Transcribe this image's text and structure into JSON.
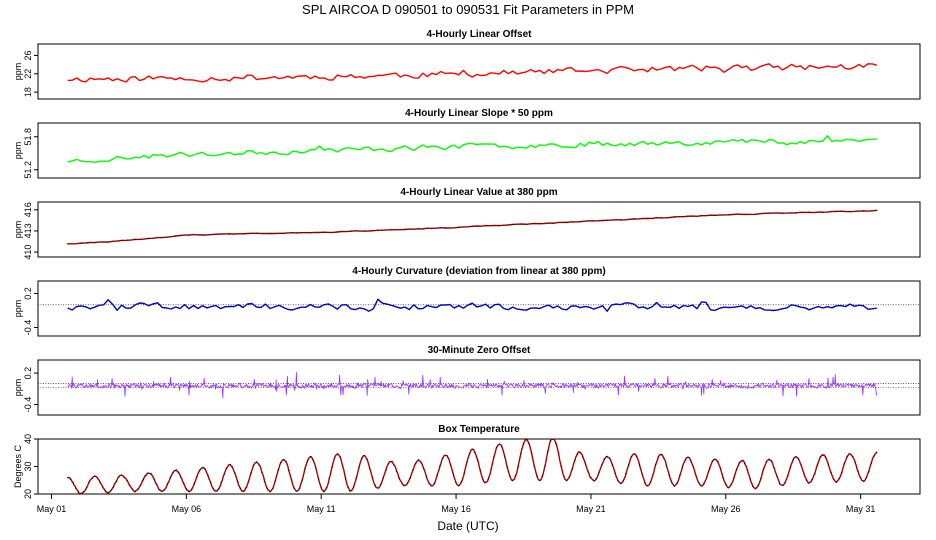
{
  "figure": {
    "title": "SPL   AIRCOA D   090501 to 090531   Fit Parameters in PPM",
    "xlabel": "Date (UTC)"
  },
  "chart_data": [
    {
      "type": "line",
      "title": "4-Hourly Linear Offset",
      "ylabel": "ppm",
      "yticks": [
        "18",
        "22",
        "26"
      ],
      "ytick_values": [
        18,
        22,
        26
      ],
      "ylim": [
        16.5,
        28.5
      ],
      "color": "#ff0000",
      "trend": [
        [
          1.6,
          20.9
        ],
        [
          6,
          21.0
        ],
        [
          11,
          21.4
        ],
        [
          16,
          21.9
        ],
        [
          21,
          22.7
        ],
        [
          26,
          23.3
        ],
        [
          31.6,
          23.6
        ]
      ],
      "noise": {
        "amp": 1.0,
        "spikes": 0.6,
        "seed": 11
      },
      "x_range": [
        1.6,
        31.6
      ]
    },
    {
      "type": "line",
      "title": "4-Hourly Linear Slope * 50 ppm",
      "ylabel": "ppm",
      "yticks": [
        "51.2",
        "51.8"
      ],
      "ytick_values": [
        51.2,
        51.8
      ],
      "ylim": [
        51.05,
        52.05
      ],
      "color": "#00ff00",
      "trend": [
        [
          1.6,
          51.36
        ],
        [
          6,
          51.48
        ],
        [
          11,
          51.55
        ],
        [
          16,
          51.62
        ],
        [
          21,
          51.67
        ],
        [
          26,
          51.71
        ],
        [
          31.6,
          51.74
        ]
      ],
      "noise": {
        "amp": 0.07,
        "spikes": 0.08,
        "seed": 23
      },
      "x_range": [
        1.6,
        31.6
      ]
    },
    {
      "type": "line",
      "title": "4-Hourly Linear Value at 380 ppm",
      "ylabel": "ppm",
      "yticks": [
        "410",
        "413",
        "416"
      ],
      "ytick_values": [
        410,
        413,
        416
      ],
      "ylim": [
        409.3,
        417.1
      ],
      "color": "#8b0000",
      "trend": [
        [
          1.6,
          411.2
        ],
        [
          3,
          411.4
        ],
        [
          6,
          412.4
        ],
        [
          11,
          412.8
        ],
        [
          16,
          413.5
        ],
        [
          21,
          414.4
        ],
        [
          26,
          415.3
        ],
        [
          31.6,
          415.9
        ]
      ],
      "noise": {
        "amp": 0.08,
        "spikes": 0.0,
        "seed": 31
      },
      "x_range": [
        1.6,
        31.6
      ]
    },
    {
      "type": "line",
      "title": "4-Hourly Curvature (deviation from linear at 380 ppm)",
      "ylabel": "ppm",
      "yticks": [
        "-0.4",
        "0.2"
      ],
      "ytick_values": [
        -0.4,
        0.2
      ],
      "ylim": [
        -0.55,
        0.42
      ],
      "color": "#0000bb",
      "refline": 0.0,
      "trend": [
        [
          1.6,
          -0.03
        ],
        [
          31.6,
          -0.03
        ]
      ],
      "noise": {
        "amp": 0.08,
        "spikes": 0.12,
        "seed": 47
      },
      "x_range": [
        1.6,
        31.6
      ]
    },
    {
      "type": "line",
      "title": "30-Minute Zero Offset",
      "ylabel": "ppm",
      "yticks": [
        "-0.4",
        "0.2"
      ],
      "ytick_values": [
        -0.4,
        0.2
      ],
      "ylim": [
        -0.6,
        0.45
      ],
      "color": "#9933ff",
      "refline_pair": [
        0.0,
        -0.07
      ],
      "trend": [
        [
          1.6,
          -0.04
        ],
        [
          31.6,
          -0.04
        ]
      ],
      "noise": {
        "amp": 0.06,
        "spikes": 0.22,
        "seed": 59
      },
      "dense": true,
      "x_range": [
        1.6,
        31.6
      ]
    },
    {
      "type": "line",
      "title": "Box Temperature",
      "ylabel": "Degrees C",
      "yticks": [
        "20",
        "30",
        "40"
      ],
      "ytick_values": [
        20,
        30,
        40
      ],
      "ylim": [
        20,
        40
      ],
      "color": "#aa0000",
      "diurnal": [
        [
          1.6,
          23,
          3
        ],
        [
          4,
          24,
          3
        ],
        [
          6,
          25,
          4
        ],
        [
          8,
          26,
          5
        ],
        [
          10,
          27,
          6
        ],
        [
          12,
          28,
          7
        ],
        [
          14,
          27,
          4
        ],
        [
          16,
          29,
          6
        ],
        [
          18,
          32,
          7
        ],
        [
          19.5,
          33,
          8
        ],
        [
          21,
          29,
          4
        ],
        [
          23,
          29,
          6
        ],
        [
          25,
          28,
          5
        ],
        [
          27,
          27,
          5
        ],
        [
          29,
          29,
          5
        ],
        [
          31.6,
          30,
          5
        ]
      ],
      "x_range": [
        1.6,
        31.6
      ]
    }
  ],
  "x_axis": {
    "xlim": [
      0.5,
      33.2
    ],
    "ticks": [
      {
        "value": 1,
        "label": "May 01"
      },
      {
        "value": 6,
        "label": "May 06"
      },
      {
        "value": 11,
        "label": "May 11"
      },
      {
        "value": 16,
        "label": "May 16"
      },
      {
        "value": 21,
        "label": "May 21"
      },
      {
        "value": 26,
        "label": "May 26"
      },
      {
        "value": 31,
        "label": "May 31"
      }
    ]
  }
}
